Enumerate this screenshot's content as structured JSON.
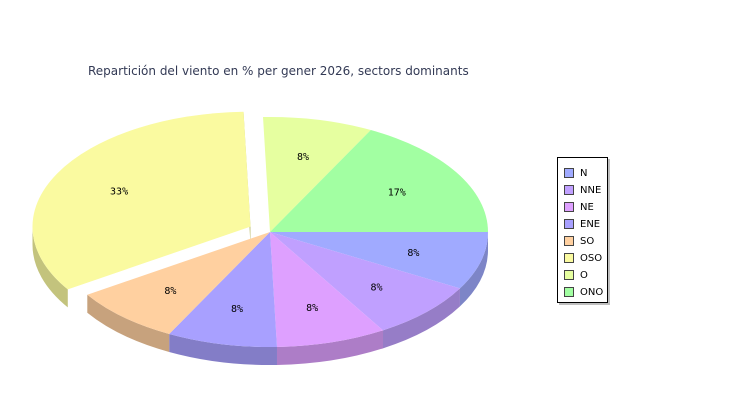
{
  "chart_data": {
    "type": "pie",
    "title": "Repartición del viento en % per gener 2026, sectors dominants",
    "categories": [
      "N",
      "NNE",
      "NE",
      "ENE",
      "SO",
      "OSO",
      "O",
      "ONO"
    ],
    "values": [
      8,
      8,
      8,
      8,
      8,
      33,
      8,
      17
    ],
    "data_labels": [
      "8%",
      "8%",
      "8%",
      "8%",
      "8%",
      "33%",
      "8%",
      "17%"
    ],
    "colors": [
      "#a0aaff",
      "#c0a0ff",
      "#dea0ff",
      "#a8a0ff",
      "#ffd0a0",
      "#fafaa0",
      "#e6ffa0",
      "#a2ffa2"
    ],
    "exploded": [
      "OSO"
    ],
    "three_d": true,
    "legend_position": "right"
  }
}
